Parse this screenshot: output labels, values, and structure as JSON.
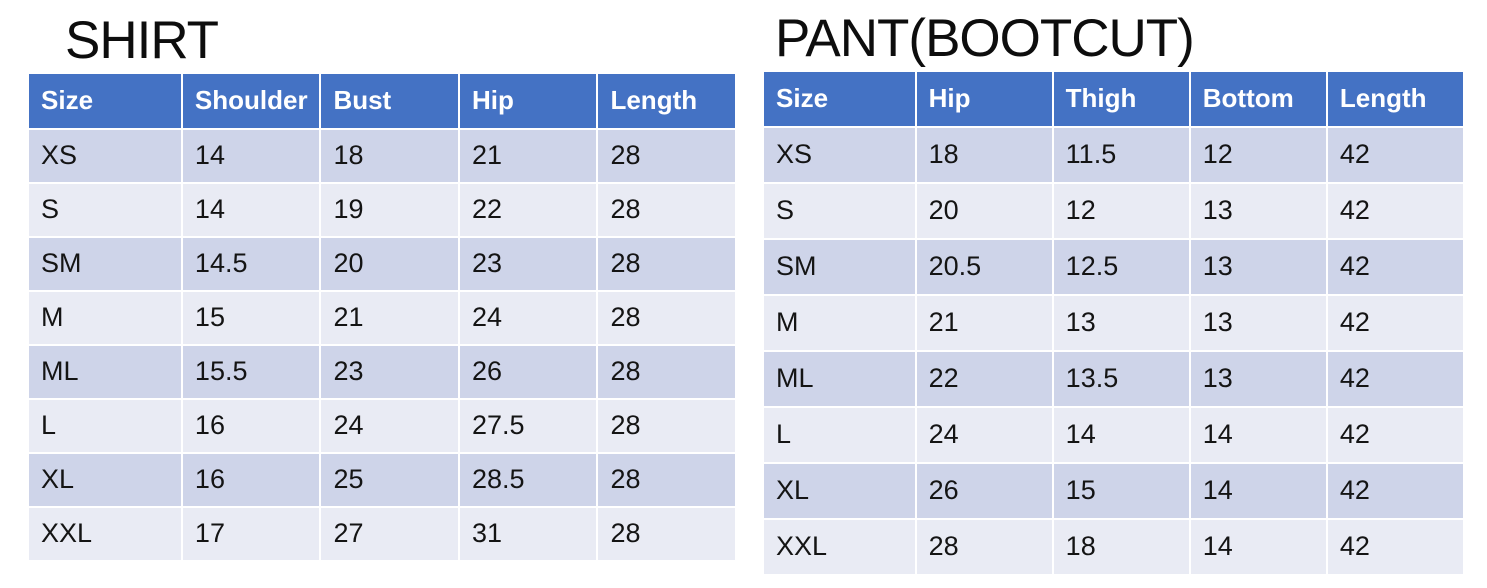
{
  "page": {
    "type": "size-chart-slide",
    "background": "#FFFFFF"
  },
  "colors": {
    "header_bg": "#4472C4",
    "header_text": "#FFFFFF",
    "band_dark": "#CED4E9",
    "band_light": "#E9EBF4",
    "body_text": "#141414",
    "title_text": "#0D0D0D",
    "cell_divider": "#FFFFFF"
  },
  "tables": [
    {
      "title": "SHIRT",
      "columns": [
        "Size",
        "Shoulder",
        "Bust",
        "Hip",
        "Length"
      ],
      "rows": [
        [
          "XS",
          "14",
          "18",
          "21",
          "28"
        ],
        [
          "S",
          "14",
          "19",
          "22",
          "28"
        ],
        [
          "SM",
          "14.5",
          "20",
          "23",
          "28"
        ],
        [
          "M",
          "15",
          "21",
          "24",
          "28"
        ],
        [
          "ML",
          "15.5",
          "23",
          "26",
          "28"
        ],
        [
          "L",
          "16",
          "24",
          "27.5",
          "28"
        ],
        [
          "XL",
          "16",
          "25",
          "28.5",
          "28"
        ],
        [
          "XXL",
          "17",
          "27",
          "31",
          "28"
        ]
      ]
    },
    {
      "title": "PANT(BOOTCUT)",
      "columns": [
        "Size",
        "Hip",
        "Thigh",
        "Bottom",
        "Length"
      ],
      "rows": [
        [
          "XS",
          "18",
          "11.5",
          "12",
          "42"
        ],
        [
          "S",
          "20",
          "12",
          "13",
          "42"
        ],
        [
          "SM",
          "20.5",
          "12.5",
          "13",
          "42"
        ],
        [
          "M",
          "21",
          "13",
          "13",
          "42"
        ],
        [
          "ML",
          "22",
          "13.5",
          "13",
          "42"
        ],
        [
          "L",
          "24",
          "14",
          "14",
          "42"
        ],
        [
          "XL",
          "26",
          "15",
          "14",
          "42"
        ],
        [
          "XXL",
          "28",
          "18",
          "14",
          "42"
        ]
      ]
    }
  ]
}
